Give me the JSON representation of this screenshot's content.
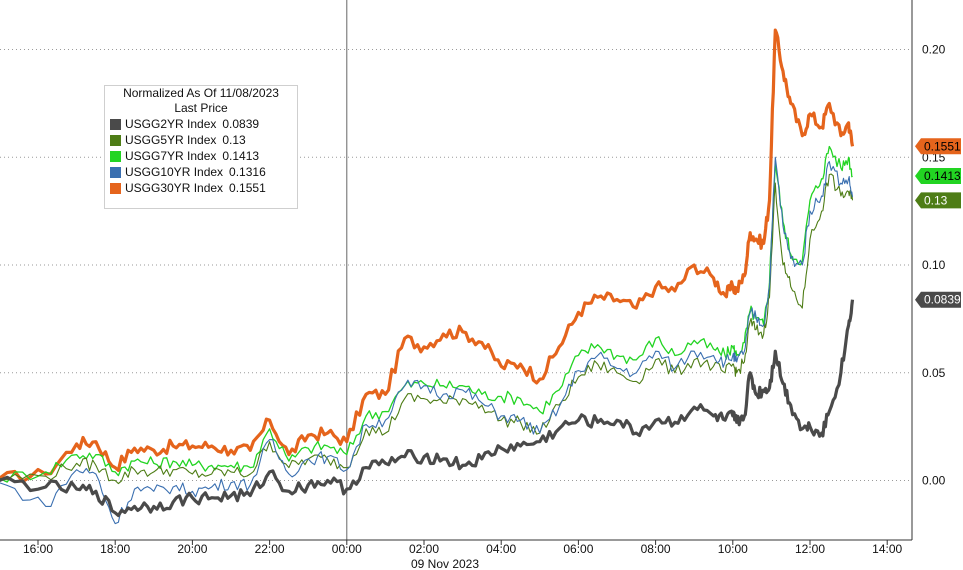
{
  "chart_data": {
    "type": "line",
    "xlabel": "09 Nov 2023",
    "x_ticks": [
      "16:00",
      "18:00",
      "20:00",
      "22:00",
      "00:00",
      "02:00",
      "04:00",
      "06:00",
      "08:00",
      "10:00",
      "12:00",
      "14:00"
    ],
    "y_ticks": [
      "0.20",
      "0.15",
      "0.10",
      "0.05",
      "0.00"
    ],
    "ylim": [
      -0.027,
      0.212
    ],
    "grid": true,
    "legend": {
      "position": "top-left",
      "title_line1": "Normalized As Of 11/08/2023",
      "title_line2": "Last Price",
      "entries": [
        {
          "label": "USGG2YR Index",
          "value": "0.0839",
          "color": "#4a4a4a"
        },
        {
          "label": "USGG5YR Index",
          "value": "0.13",
          "color": "#4e7d16"
        },
        {
          "label": "USGG7YR Index",
          "value": "0.1413",
          "color": "#22d422"
        },
        {
          "label": "USGG10YR Index",
          "value": "0.1316",
          "color": "#3a6fb0"
        },
        {
          "label": "USGG30YR Index",
          "value": "0.1551",
          "color": "#e5641c"
        }
      ]
    },
    "last_price_tags": [
      {
        "value": "0.1551",
        "y": 0.1551,
        "color": "#e5641c",
        "text_color": "#000000"
      },
      {
        "value": "0.1413",
        "y": 0.1413,
        "color": "#22d422",
        "text_color": "#000000"
      },
      {
        "value": "0.13",
        "y": 0.13,
        "color": "#4e7d16",
        "text_color": "#ffffff"
      },
      {
        "value": "0.0839",
        "y": 0.0839,
        "color": "#4a4a4a",
        "text_color": "#ffffff"
      }
    ],
    "highlight_spans": [
      {
        "x": [
          9.78,
          10.05
        ],
        "y": [
          0.036,
          0.212
        ]
      },
      {
        "x": [
          10.72,
          11.12
        ],
        "y": [
          0.021,
          0.179
        ]
      }
    ],
    "series": [
      {
        "name": "USGG30YR Index",
        "color": "#e5641c",
        "width": 3.2,
        "x": [
          15,
          16.2,
          17,
          17.5,
          18,
          18.5,
          19,
          19.5,
          20,
          20.5,
          21,
          21.5,
          22,
          22.5,
          23,
          23.5,
          24,
          24.5,
          25,
          25.5,
          26,
          26.5,
          27,
          27.5,
          28,
          28.5,
          29,
          29.5,
          30,
          30.5,
          31,
          31.5,
          32,
          32.5,
          33,
          33.5,
          33.8,
          34,
          34.1,
          34.3,
          34.45,
          34.6,
          34.8,
          34.95,
          35.1,
          35.3,
          35.5,
          35.8,
          36,
          36.3,
          36.5,
          36.8,
          37,
          37.1
        ],
        "y": [
          0.001,
          0.003,
          0.017,
          0.018,
          0.006,
          0.015,
          0.014,
          0.016,
          0.016,
          0.016,
          0.014,
          0.014,
          0.028,
          0.012,
          0.021,
          0.022,
          0.018,
          0.04,
          0.04,
          0.066,
          0.062,
          0.068,
          0.069,
          0.064,
          0.053,
          0.054,
          0.047,
          0.062,
          0.078,
          0.085,
          0.084,
          0.08,
          0.09,
          0.088,
          0.1,
          0.094,
          0.086,
          0.09,
          0.088,
          0.095,
          0.115,
          0.112,
          0.11,
          0.13,
          0.209,
          0.19,
          0.175,
          0.16,
          0.17,
          0.164,
          0.175,
          0.16,
          0.166,
          0.1551
        ]
      },
      {
        "name": "USGG7YR Index",
        "color": "#22d422",
        "width": 1.3,
        "x": [
          15,
          16.2,
          17,
          17.5,
          18,
          18.5,
          19,
          19.5,
          20,
          20.5,
          21,
          21.5,
          22,
          22.5,
          23,
          23.5,
          24,
          24.5,
          25,
          25.5,
          26,
          26.5,
          27,
          27.5,
          28,
          28.5,
          29,
          29.5,
          30,
          30.5,
          31,
          31.5,
          32,
          32.5,
          33,
          33.5,
          33.8,
          34,
          34.1,
          34.3,
          34.45,
          34.6,
          34.8,
          34.95,
          35.1,
          35.3,
          35.5,
          35.8,
          36,
          36.3,
          36.5,
          36.8,
          37,
          37.1
        ],
        "y": [
          0.001,
          0.004,
          0.012,
          0.012,
          0.004,
          0.009,
          0.008,
          0.009,
          0.007,
          0.007,
          0.007,
          0.006,
          0.024,
          0.009,
          0.015,
          0.016,
          0.012,
          0.03,
          0.032,
          0.044,
          0.045,
          0.044,
          0.044,
          0.04,
          0.039,
          0.038,
          0.032,
          0.042,
          0.058,
          0.063,
          0.058,
          0.056,
          0.066,
          0.058,
          0.065,
          0.061,
          0.058,
          0.062,
          0.058,
          0.064,
          0.079,
          0.075,
          0.072,
          0.092,
          0.148,
          0.12,
          0.105,
          0.102,
          0.13,
          0.14,
          0.155,
          0.145,
          0.15,
          0.1413
        ]
      },
      {
        "name": "USGG5YR Index",
        "color": "#4e7d16",
        "width": 1.1,
        "x": [
          15,
          16.2,
          17,
          17.5,
          18,
          18.5,
          19,
          19.5,
          20,
          20.5,
          21,
          21.5,
          22,
          22.5,
          23,
          23.5,
          24,
          24.5,
          25,
          25.5,
          26,
          26.5,
          27,
          27.5,
          28,
          28.5,
          29,
          29.5,
          30,
          30.5,
          31,
          31.5,
          32,
          32.5,
          33,
          33.5,
          33.8,
          34,
          34.1,
          34.3,
          34.45,
          34.6,
          34.8,
          34.95,
          35.1,
          35.3,
          35.5,
          35.8,
          36,
          36.3,
          36.5,
          36.8,
          37,
          37.1
        ],
        "y": [
          0.001,
          0.002,
          0.008,
          0.007,
          0.0,
          0.005,
          0.004,
          0.005,
          0.003,
          0.003,
          0.004,
          0.003,
          0.018,
          0.006,
          0.01,
          0.01,
          0.006,
          0.024,
          0.022,
          0.038,
          0.038,
          0.036,
          0.038,
          0.035,
          0.028,
          0.027,
          0.022,
          0.035,
          0.048,
          0.054,
          0.05,
          0.046,
          0.056,
          0.05,
          0.056,
          0.053,
          0.05,
          0.054,
          0.05,
          0.055,
          0.074,
          0.07,
          0.068,
          0.085,
          0.138,
          0.1,
          0.09,
          0.08,
          0.112,
          0.125,
          0.142,
          0.132,
          0.134,
          0.13
        ]
      },
      {
        "name": "USGG10YR Index",
        "color": "#3a6fb0",
        "width": 1.1,
        "x": [
          15,
          16.2,
          17,
          17.5,
          18,
          18.5,
          19,
          19.5,
          20,
          20.5,
          21,
          21.5,
          22,
          22.5,
          23,
          23.5,
          24,
          24.5,
          25,
          25.5,
          26,
          26.5,
          27,
          27.5,
          28,
          28.5,
          29,
          29.5,
          30,
          30.5,
          31,
          31.5,
          32,
          32.5,
          33,
          33.5,
          33.8,
          34,
          34.1,
          34.3,
          34.45,
          34.6,
          34.8,
          34.95,
          35.1,
          35.3,
          35.5,
          35.8,
          36,
          36.3,
          36.5,
          36.8,
          37,
          37.1
        ],
        "y": [
          -0.001,
          -0.012,
          0.005,
          0.003,
          -0.02,
          -0.004,
          -0.005,
          -0.003,
          -0.005,
          -0.003,
          -0.001,
          -0.002,
          0.019,
          0.003,
          0.01,
          0.011,
          0.005,
          0.026,
          0.028,
          0.044,
          0.044,
          0.04,
          0.042,
          0.036,
          0.03,
          0.028,
          0.022,
          0.034,
          0.051,
          0.058,
          0.052,
          0.05,
          0.06,
          0.052,
          0.06,
          0.058,
          0.055,
          0.058,
          0.055,
          0.06,
          0.078,
          0.076,
          0.072,
          0.09,
          0.15,
          0.118,
          0.103,
          0.1,
          0.125,
          0.132,
          0.148,
          0.138,
          0.14,
          0.1316
        ]
      },
      {
        "name": "USGG2YR Index",
        "color": "#4a4a4a",
        "width": 3.2,
        "x": [
          15,
          16.2,
          17,
          17.5,
          18,
          18.5,
          19,
          19.5,
          20,
          20.5,
          21,
          21.5,
          22,
          22.5,
          23,
          23.5,
          24,
          24.5,
          25,
          25.5,
          26,
          26.5,
          27,
          27.5,
          28,
          28.5,
          29,
          29.5,
          30,
          30.5,
          31,
          31.5,
          32,
          32.5,
          33,
          33.5,
          33.8,
          34,
          34.1,
          34.3,
          34.45,
          34.6,
          34.8,
          34.95,
          35.1,
          35.3,
          35.5,
          35.8,
          36,
          36.3,
          36.5,
          36.8,
          37,
          37.1
        ],
        "y": [
          0.0,
          -0.003,
          -0.004,
          -0.005,
          -0.015,
          -0.012,
          -0.012,
          -0.01,
          -0.008,
          -0.008,
          -0.007,
          -0.007,
          0.004,
          -0.005,
          -0.002,
          0.0,
          -0.004,
          0.006,
          0.008,
          0.011,
          0.011,
          0.01,
          0.007,
          0.01,
          0.015,
          0.016,
          0.018,
          0.024,
          0.028,
          0.027,
          0.028,
          0.022,
          0.028,
          0.027,
          0.034,
          0.03,
          0.028,
          0.03,
          0.027,
          0.03,
          0.05,
          0.04,
          0.042,
          0.043,
          0.06,
          0.045,
          0.035,
          0.024,
          0.025,
          0.022,
          0.032,
          0.05,
          0.072,
          0.0839
        ]
      }
    ]
  }
}
